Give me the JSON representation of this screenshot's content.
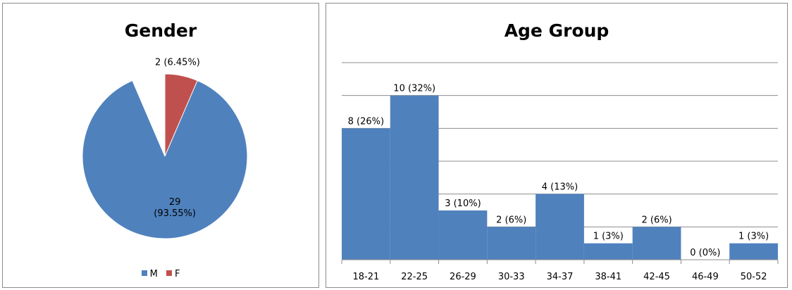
{
  "chart_data": [
    {
      "type": "pie",
      "title": "Gender",
      "slices": [
        {
          "label": "M",
          "value": 29,
          "label_lines": [
            "29",
            "(93.55%)"
          ],
          "color": "#4F81BD"
        },
        {
          "label": "F",
          "value": 2,
          "label_lines": [
            "2 (6.45%)"
          ],
          "color": "#C0504D"
        }
      ],
      "legend": {
        "placement": "bottom",
        "entries": [
          "M",
          "F"
        ]
      }
    },
    {
      "type": "bar",
      "title": "Age Group",
      "categories": [
        "18-21",
        "22-25",
        "26-29",
        "30-33",
        "34-37",
        "38-41",
        "42-45",
        "46-49",
        "50-52"
      ],
      "values": [
        8,
        10,
        3,
        2,
        4,
        1,
        2,
        0,
        1
      ],
      "data_labels": [
        "8 (26%)",
        "10 (32%)",
        "3 (10%)",
        "2 (6%)",
        "4 (13%)",
        "1 (3%)",
        "2 (6%)",
        "0 (0%)",
        "1 (3%)"
      ],
      "ylim": [
        0,
        12
      ],
      "grid": true,
      "color": "#4F81BD",
      "legend": null
    }
  ]
}
